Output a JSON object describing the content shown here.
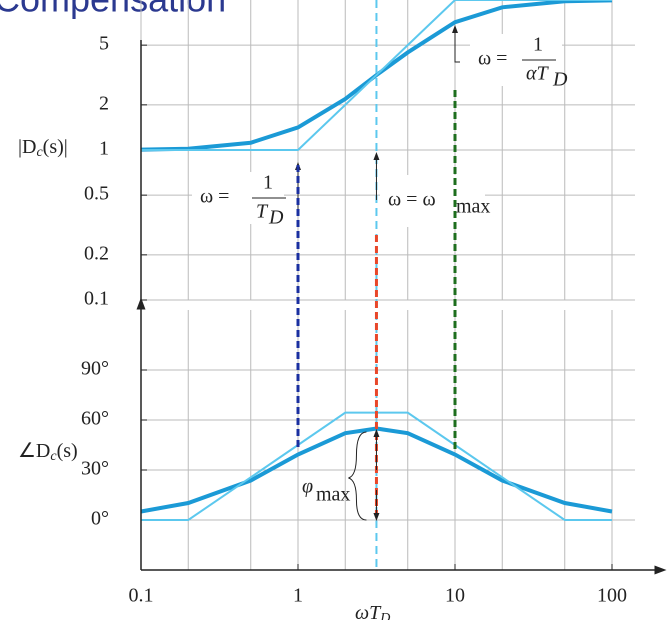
{
  "chart_data": [
    {
      "type": "line",
      "title": "Compensation",
      "y_label": [
        "|D",
        "c",
        "(s)|"
      ],
      "x": [
        0.1,
        0.2,
        0.5,
        1,
        2,
        3.16,
        5,
        10,
        20,
        50,
        100
      ],
      "series": [
        {
          "color": "#1b9ad6",
          "values": [
            1.005,
            1.02,
            1.118,
            1.414,
            2.19,
            3.16,
            4.47,
            7.11,
            8.94,
            9.81,
            9.95
          ]
        },
        {
          "color": "#5cc8ee",
          "values": [
            1,
            1,
            1,
            1,
            2,
            3.16,
            5,
            10,
            10,
            10,
            10
          ]
        }
      ],
      "log_x": true,
      "log_y": true,
      "xlim": [
        0.1,
        100
      ],
      "ylim": [
        0.1,
        10
      ],
      "yticks": [
        0.1,
        0.2,
        0.5,
        1,
        2,
        5
      ],
      "xgrid": [
        0.1,
        0.2,
        0.5,
        1,
        2,
        5,
        10,
        20,
        50,
        100
      ],
      "grid": true,
      "annotations": [
        {
          "text": "ω = ",
          "num": "1",
          "den": "T",
          "den_sub": "D",
          "x": 1
        },
        {
          "text": "ω = ω",
          "sub": "max",
          "x": 3.16
        },
        {
          "text": "ω = ",
          "num": "1",
          "den": "αT",
          "den_sub": "D",
          "x": 10
        }
      ]
    },
    {
      "type": "line",
      "y_label": [
        "∠D",
        "c",
        "(s)"
      ],
      "x_label": [
        "ωT",
        "D"
      ],
      "x": [
        0.1,
        0.2,
        0.5,
        1,
        2,
        3.16,
        5,
        10,
        20,
        50,
        100
      ],
      "series": [
        {
          "color": "#1b9ad6",
          "values": [
            5.1,
            10.2,
            23.7,
            39.3,
            52.1,
            54.9,
            52.1,
            39.3,
            23.7,
            10.2,
            5.1
          ]
        },
        {
          "color": "#5cc8ee",
          "values": [
            0,
            0,
            25.6,
            45,
            64.4,
            64.4,
            64.4,
            45,
            25.6,
            0,
            0
          ]
        }
      ],
      "log_x": true,
      "xlim": [
        0.1,
        100
      ],
      "ylim": [
        -30,
        126
      ],
      "xticks": [
        0.1,
        1,
        10,
        100
      ],
      "xgrid": [
        0.1,
        0.2,
        0.5,
        1,
        2,
        5,
        10,
        20,
        50,
        100
      ],
      "yticks": [
        {
          "value": 0,
          "label": "0°"
        },
        {
          "value": 30,
          "label": "30°"
        },
        {
          "value": 60,
          "label": "60°"
        },
        {
          "value": 90,
          "label": "90°"
        }
      ],
      "grid": true,
      "markers": [
        {
          "x": 1,
          "color": "#1a2fa0"
        },
        {
          "x": 3.16,
          "color": "#e8472a"
        },
        {
          "x": 10,
          "color": "#1e6e1e"
        }
      ],
      "annotations": [
        {
          "text": "φ",
          "sub": "max"
        }
      ]
    }
  ]
}
